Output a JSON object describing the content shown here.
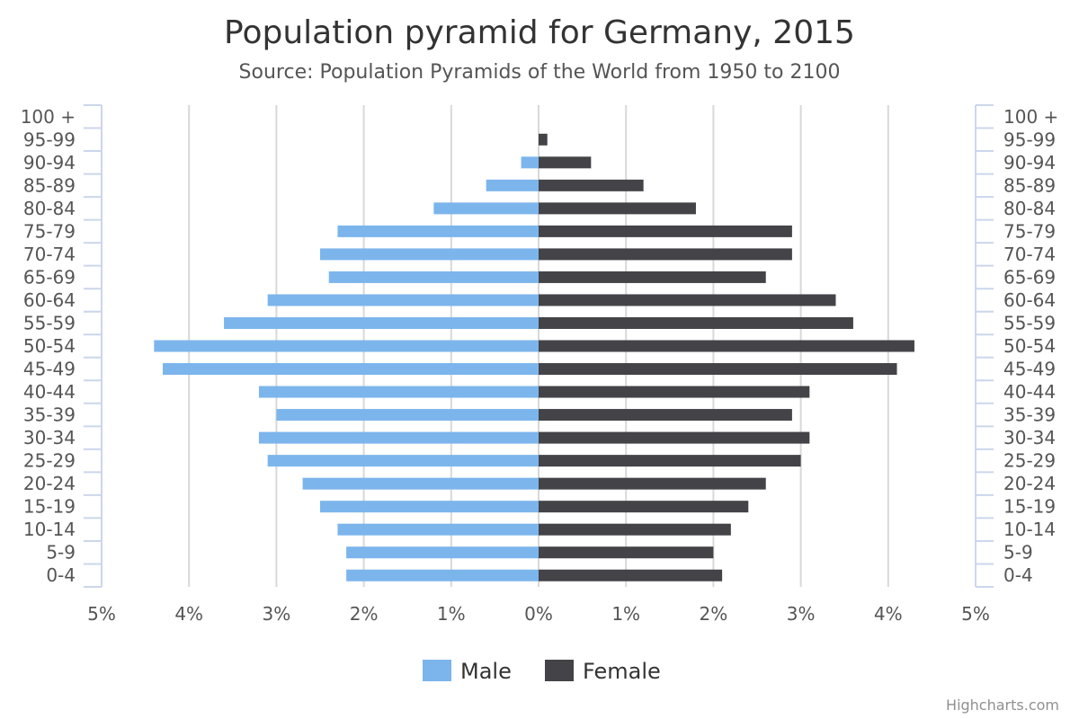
{
  "chart_data": {
    "type": "bar",
    "orientation": "horizontal",
    "title": "Population pyramid for Germany, 2015",
    "subtitle": "Source: Population Pyramids of the World from 1950 to 2100",
    "categories": [
      "0-4",
      "5-9",
      "10-14",
      "15-19",
      "20-24",
      "25-29",
      "30-34",
      "35-39",
      "40-44",
      "45-49",
      "50-54",
      "55-59",
      "60-64",
      "65-69",
      "70-74",
      "75-79",
      "80-84",
      "85-89",
      "90-94",
      "95-99",
      "100 +"
    ],
    "series": [
      {
        "name": "Male",
        "color": "#7cb5ec",
        "values": [
          -2.2,
          -2.2,
          -2.3,
          -2.5,
          -2.7,
          -3.1,
          -3.2,
          -3.0,
          -3.2,
          -4.3,
          -4.4,
          -3.6,
          -3.1,
          -2.4,
          -2.5,
          -2.3,
          -1.2,
          -0.6,
          -0.2,
          0,
          0
        ]
      },
      {
        "name": "Female",
        "color": "#434348",
        "values": [
          2.1,
          2.0,
          2.2,
          2.4,
          2.6,
          3.0,
          3.1,
          2.9,
          3.1,
          4.1,
          4.3,
          3.6,
          3.4,
          2.6,
          2.9,
          2.9,
          1.8,
          1.2,
          0.6,
          0.1,
          0
        ]
      }
    ],
    "xlim": [
      -5,
      5
    ],
    "x_ticks": [
      -5,
      -4,
      -3,
      -2,
      -1,
      0,
      1,
      2,
      3,
      4,
      5
    ],
    "x_tick_labels": [
      "5%",
      "4%",
      "3%",
      "2%",
      "1%",
      "0%",
      "1%",
      "2%",
      "3%",
      "4%",
      "5%"
    ],
    "grid": true,
    "legend_position": "bottom-center"
  },
  "credit": "Highcharts.com"
}
